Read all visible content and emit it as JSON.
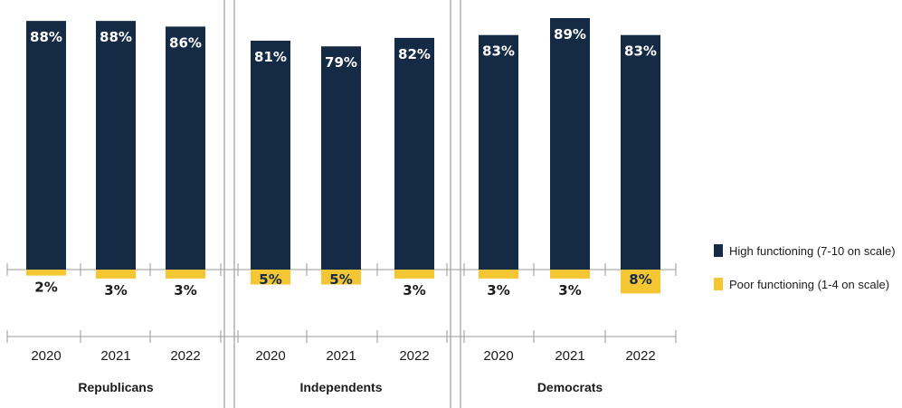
{
  "chart_data": {
    "type": "bar",
    "groups": [
      {
        "name": "Republicans",
        "years": [
          "2020",
          "2021",
          "2022"
        ]
      },
      {
        "name": "Independents",
        "years": [
          "2020",
          "2021",
          "2022"
        ]
      },
      {
        "name": "Democrats",
        "years": [
          "2020",
          "2021",
          "2022"
        ]
      }
    ],
    "series": [
      {
        "name": "High functioning (7-10 on scale)",
        "color": "#152b45",
        "values": [
          88,
          88,
          86,
          81,
          79,
          82,
          83,
          89,
          83
        ],
        "labels": [
          "88%",
          "88%",
          "86%",
          "81%",
          "79%",
          "82%",
          "83%",
          "89%",
          "83%"
        ]
      },
      {
        "name": "Poor functioning (1-4 on scale)",
        "color": "#f5c633",
        "values": [
          2,
          3,
          3,
          5,
          5,
          3,
          3,
          3,
          8
        ],
        "labels": [
          "2%",
          "3%",
          "3%",
          "5%",
          "5%",
          "3%",
          "3%",
          "3%",
          "8%"
        ]
      }
    ],
    "legend": "right",
    "grid": false
  }
}
